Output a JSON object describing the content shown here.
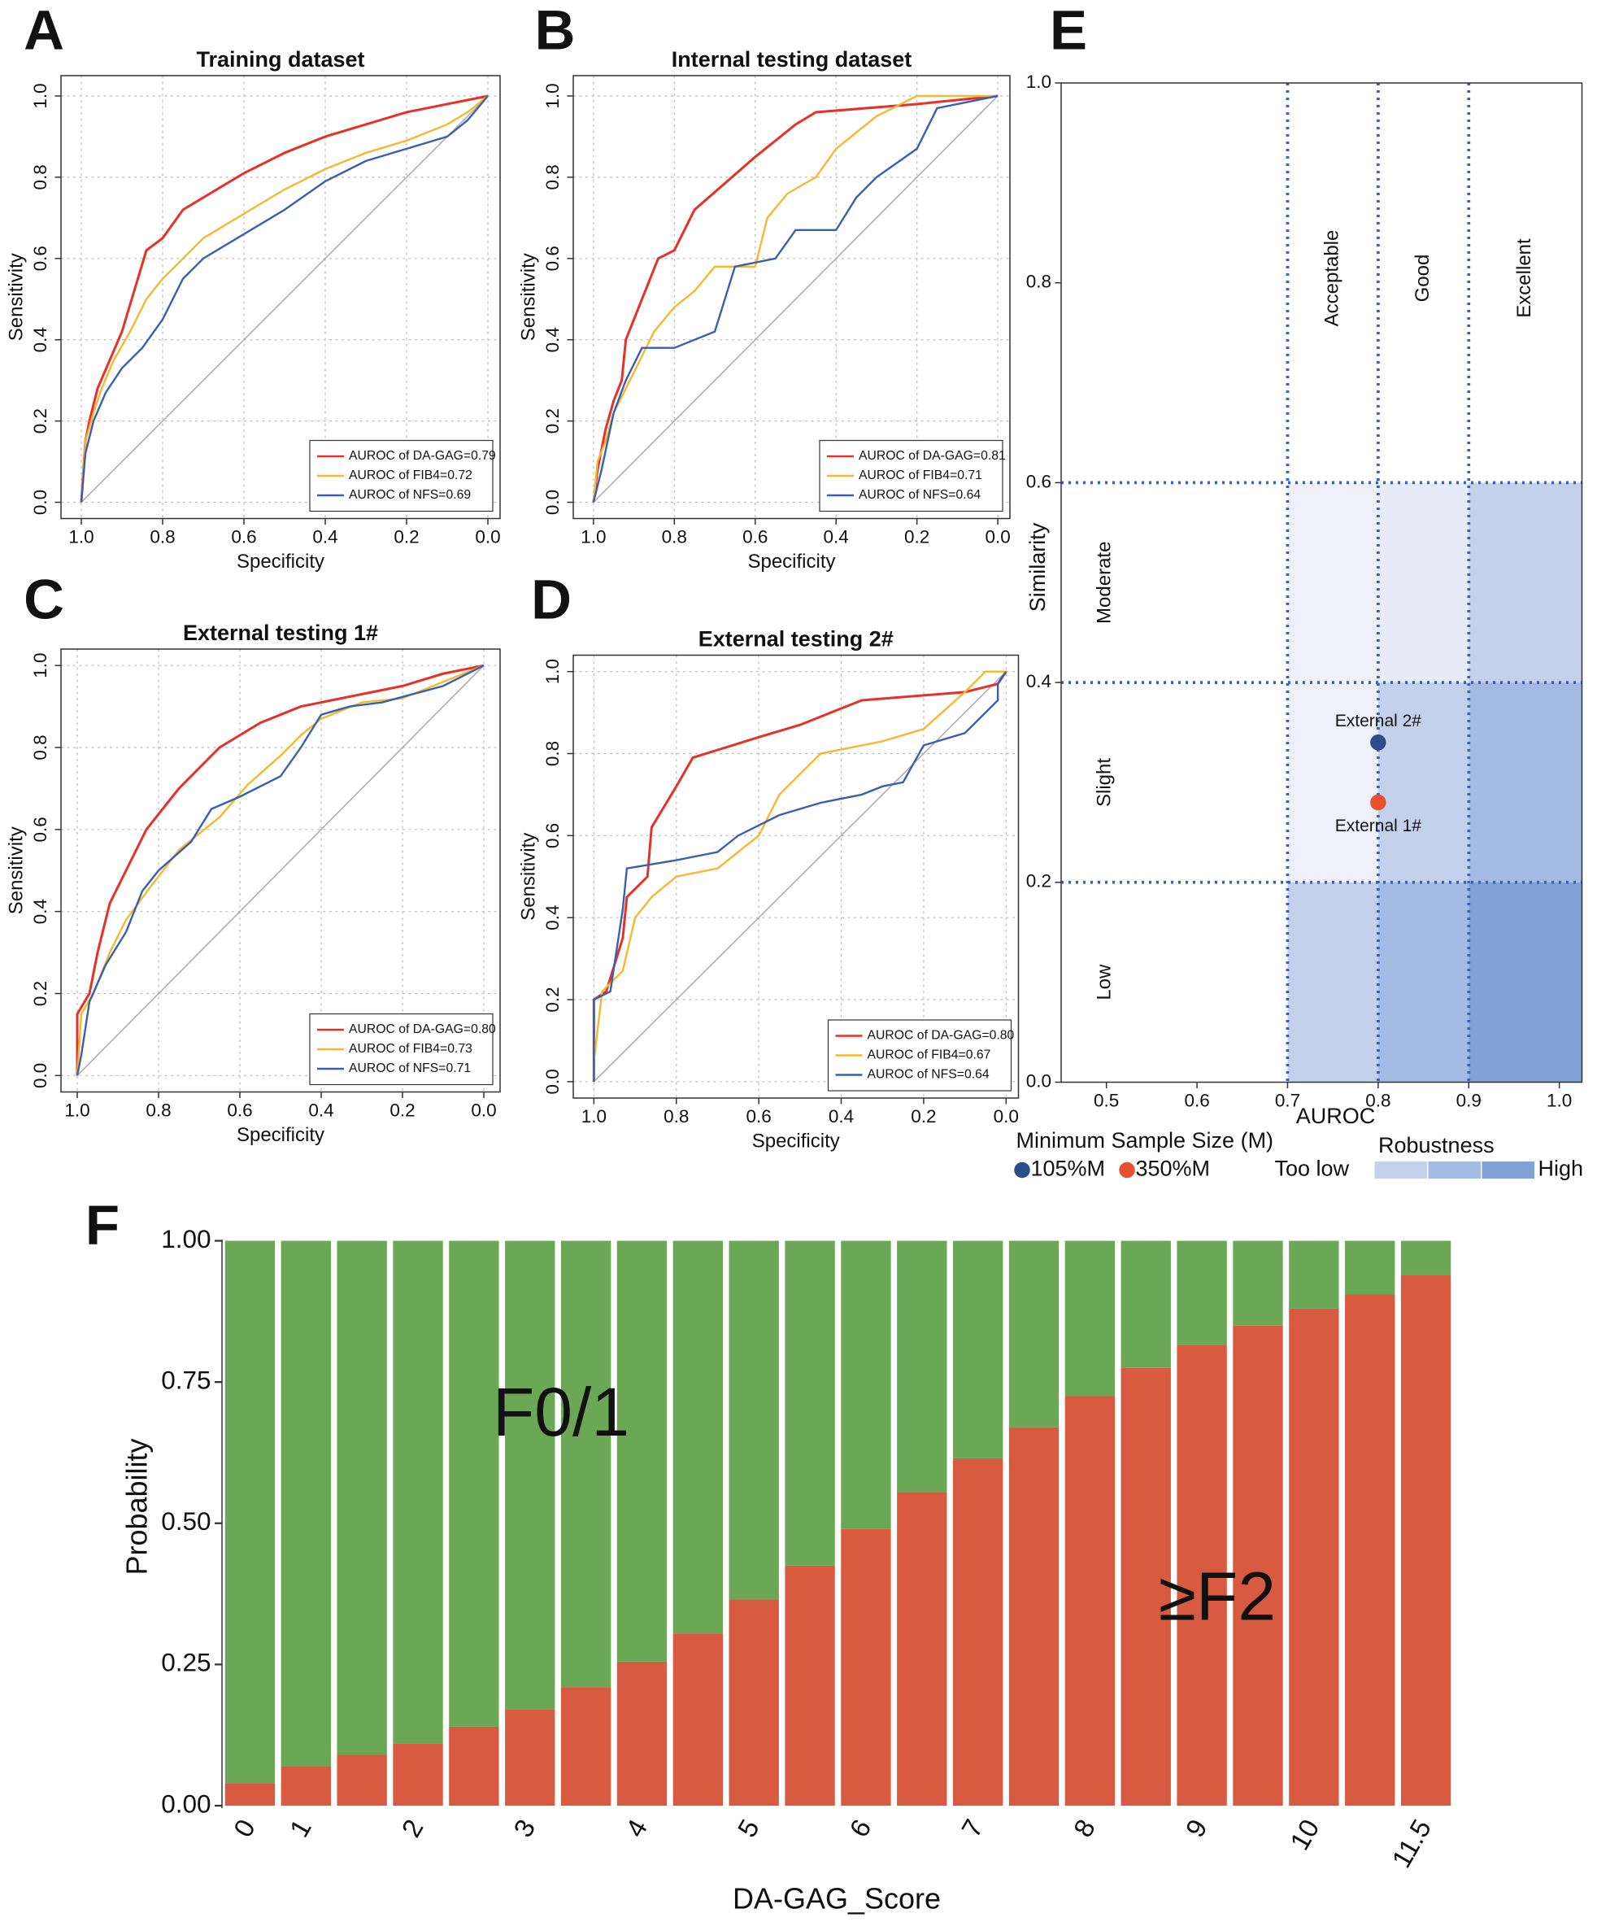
{
  "chart_data": [
    {
      "type": "line",
      "panel": "A",
      "title": "Training dataset",
      "xlabel": "Specificity",
      "ylabel": "Sensitivity",
      "xlim": [
        1.05,
        -0.03
      ],
      "ylim": [
        -0.04,
        1.05
      ],
      "xticks": [
        {
          "value": 1,
          "label": "1.0"
        },
        0.8,
        0.6,
        0.4,
        0.2,
        {
          "value": 0,
          "label": "0.0"
        }
      ],
      "yticks": [
        {
          "value": 0,
          "label": "0.0"
        },
        0.2,
        0.4,
        0.6,
        0.8,
        {
          "value": 1,
          "label": "1.0"
        }
      ],
      "grid": true,
      "legend": "lower right",
      "series": [
        {
          "name": "AUROC of DA-GAG=0.79",
          "color": "#e8302a",
          "x": [
            1,
            0.99,
            0.98,
            0.96,
            0.93,
            0.9,
            0.87,
            0.84,
            0.8,
            0.75,
            0.6,
            0.5,
            0.4,
            0.3,
            0.2,
            0.1,
            0
          ],
          "values": [
            0,
            0.15,
            0.2,
            0.28,
            0.35,
            0.42,
            0.52,
            0.62,
            0.65,
            0.72,
            0.81,
            0.86,
            0.9,
            0.93,
            0.96,
            0.98,
            1
          ]
        },
        {
          "name": "AUROC of FIB4=0.72",
          "color": "#f5b82e",
          "x": [
            1,
            0.99,
            0.97,
            0.95,
            0.92,
            0.88,
            0.84,
            0.8,
            0.75,
            0.7,
            0.6,
            0.5,
            0.4,
            0.3,
            0.2,
            0.1,
            0.05,
            0
          ],
          "values": [
            0,
            0.15,
            0.22,
            0.28,
            0.35,
            0.42,
            0.5,
            0.55,
            0.6,
            0.65,
            0.71,
            0.77,
            0.82,
            0.86,
            0.89,
            0.93,
            0.96,
            1
          ]
        },
        {
          "name": "AUROC of NFS=0.69",
          "color": "#3a5fb0",
          "x": [
            1,
            0.99,
            0.97,
            0.94,
            0.9,
            0.85,
            0.8,
            0.75,
            0.7,
            0.6,
            0.5,
            0.4,
            0.3,
            0.2,
            0.1,
            0.05,
            0
          ],
          "values": [
            0,
            0.12,
            0.2,
            0.27,
            0.33,
            0.38,
            0.45,
            0.55,
            0.6,
            0.66,
            0.72,
            0.79,
            0.84,
            0.87,
            0.9,
            0.94,
            1
          ]
        }
      ]
    },
    {
      "type": "line",
      "panel": "B",
      "title": "Internal testing dataset",
      "xlabel": "Specificity",
      "ylabel": "Sensitivity",
      "xlim": [
        1.05,
        -0.03
      ],
      "ylim": [
        -0.04,
        1.05
      ],
      "xticks": [
        {
          "value": 1,
          "label": "1.0"
        },
        0.8,
        0.6,
        0.4,
        0.2,
        {
          "value": 0,
          "label": "0.0"
        }
      ],
      "yticks": [
        {
          "value": 0,
          "label": "0.0"
        },
        0.2,
        0.4,
        0.6,
        0.8,
        {
          "value": 1,
          "label": "1.0"
        }
      ],
      "grid": true,
      "legend": "lower right",
      "series": [
        {
          "name": "AUROC of DA-GAG=0.81",
          "color": "#e8302a",
          "x": [
            1,
            0.99,
            0.97,
            0.95,
            0.93,
            0.92,
            0.88,
            0.84,
            0.8,
            0.75,
            0.6,
            0.5,
            0.45,
            0.2,
            0
          ],
          "values": [
            0,
            0.08,
            0.18,
            0.25,
            0.3,
            0.4,
            0.5,
            0.6,
            0.62,
            0.72,
            0.85,
            0.93,
            0.96,
            0.98,
            1
          ]
        },
        {
          "name": "AUROC of FIB4=0.71",
          "color": "#f5b82e",
          "x": [
            1,
            0.99,
            0.97,
            0.95,
            0.9,
            0.85,
            0.8,
            0.75,
            0.7,
            0.6,
            0.57,
            0.52,
            0.45,
            0.4,
            0.3,
            0.2,
            0
          ],
          "values": [
            0,
            0.1,
            0.15,
            0.22,
            0.32,
            0.42,
            0.48,
            0.52,
            0.58,
            0.58,
            0.7,
            0.76,
            0.8,
            0.87,
            0.95,
            1,
            1
          ]
        },
        {
          "name": "AUROC of NFS=0.64",
          "color": "#3a5fb0",
          "x": [
            1,
            0.98,
            0.95,
            0.92,
            0.88,
            0.8,
            0.7,
            0.65,
            0.55,
            0.5,
            0.4,
            0.35,
            0.3,
            0.2,
            0.15,
            0
          ],
          "values": [
            0,
            0.08,
            0.22,
            0.3,
            0.38,
            0.38,
            0.42,
            0.58,
            0.6,
            0.67,
            0.67,
            0.75,
            0.8,
            0.87,
            0.97,
            1
          ]
        }
      ]
    },
    {
      "type": "line",
      "panel": "C",
      "title": "External testing 1#",
      "xlabel": "Specificity",
      "ylabel": "Sensitivity",
      "xlim": [
        1.04,
        -0.04
      ],
      "ylim": [
        -0.04,
        1.04
      ],
      "xticks": [
        {
          "value": 1,
          "label": "1.0"
        },
        0.8,
        0.6,
        0.4,
        0.2,
        {
          "value": 0,
          "label": "0.0"
        }
      ],
      "yticks": [
        {
          "value": 0,
          "label": "0.0"
        },
        0.2,
        0.4,
        0.6,
        0.8,
        {
          "value": 1,
          "label": "1.0"
        }
      ],
      "grid": true,
      "legend": "lower right",
      "series": [
        {
          "name": "AUROC of DA-GAG=0.80",
          "color": "#e8302a",
          "x": [
            1,
            1,
            0.97,
            0.95,
            0.92,
            0.88,
            0.83,
            0.75,
            0.65,
            0.55,
            0.45,
            0.35,
            0.2,
            0.1,
            0
          ],
          "values": [
            0,
            0.15,
            0.2,
            0.3,
            0.42,
            0.5,
            0.6,
            0.7,
            0.8,
            0.86,
            0.9,
            0.92,
            0.95,
            0.98,
            1
          ]
        },
        {
          "name": "AUROC of FIB4=0.73",
          "color": "#f5b82e",
          "x": [
            1,
            0.99,
            0.96,
            0.92,
            0.88,
            0.82,
            0.75,
            0.65,
            0.58,
            0.5,
            0.45,
            0.4,
            0.3,
            0.2,
            0.1,
            0
          ],
          "values": [
            0,
            0.15,
            0.2,
            0.3,
            0.38,
            0.46,
            0.55,
            0.63,
            0.71,
            0.78,
            0.83,
            0.87,
            0.91,
            0.92,
            0.96,
            1
          ]
        },
        {
          "name": "AUROC of NFS=0.71",
          "color": "#3a5fb0",
          "x": [
            1,
            0.99,
            0.97,
            0.93,
            0.88,
            0.84,
            0.8,
            0.72,
            0.67,
            0.6,
            0.5,
            0.45,
            0.4,
            0.33,
            0.25,
            0.1,
            0
          ],
          "values": [
            0,
            0.05,
            0.18,
            0.27,
            0.35,
            0.45,
            0.5,
            0.57,
            0.65,
            0.68,
            0.73,
            0.8,
            0.88,
            0.9,
            0.91,
            0.95,
            1
          ]
        }
      ]
    },
    {
      "type": "line",
      "panel": "D",
      "title": "External testing 2#",
      "xlabel": "Specificity",
      "ylabel": "Sensitivity",
      "xlim": [
        1.05,
        -0.03
      ],
      "ylim": [
        -0.04,
        1.04
      ],
      "xticks": [
        {
          "value": 1,
          "label": "1.0"
        },
        0.8,
        0.6,
        0.4,
        0.2,
        {
          "value": 0,
          "label": "0.0"
        }
      ],
      "yticks": [
        {
          "value": 0,
          "label": "0.0"
        },
        0.2,
        0.4,
        0.6,
        0.8,
        {
          "value": 1,
          "label": "1.0"
        }
      ],
      "grid": true,
      "legend": "lower right",
      "series": [
        {
          "name": "AUROC of DA-GAG=0.80",
          "color": "#e8302a",
          "x": [
            1,
            1,
            0.97,
            0.93,
            0.92,
            0.87,
            0.86,
            0.8,
            0.76,
            0.6,
            0.5,
            0.4,
            0.35,
            0.1,
            0.02,
            0
          ],
          "values": [
            0,
            0.2,
            0.22,
            0.35,
            0.45,
            0.5,
            0.62,
            0.72,
            0.79,
            0.84,
            0.87,
            0.91,
            0.93,
            0.95,
            0.97,
            1
          ]
        },
        {
          "name": "AUROC of FIB4=0.67",
          "color": "#f5b82e",
          "x": [
            1,
            1,
            0.98,
            0.93,
            0.9,
            0.86,
            0.8,
            0.7,
            0.6,
            0.55,
            0.5,
            0.45,
            0.3,
            0.2,
            0.1,
            0.05,
            0
          ],
          "values": [
            0,
            0.05,
            0.22,
            0.27,
            0.4,
            0.45,
            0.5,
            0.52,
            0.6,
            0.7,
            0.75,
            0.8,
            0.83,
            0.86,
            0.95,
            1,
            1
          ]
        },
        {
          "name": "AUROC of NFS=0.64",
          "color": "#3a5fb0",
          "x": [
            1,
            1,
            0.96,
            0.93,
            0.92,
            0.8,
            0.7,
            0.65,
            0.55,
            0.45,
            0.35,
            0.3,
            0.25,
            0.2,
            0.1,
            0.02,
            0.02,
            0
          ],
          "values": [
            0,
            0.2,
            0.22,
            0.42,
            0.52,
            0.54,
            0.56,
            0.6,
            0.65,
            0.68,
            0.7,
            0.72,
            0.73,
            0.82,
            0.85,
            0.93,
            0.97,
            1
          ]
        }
      ]
    },
    {
      "type": "scatter",
      "panel": "E",
      "xlabel": "AUROC",
      "ylabel": "Similarity",
      "xlim": [
        0.45,
        1.025
      ],
      "ylim": [
        0,
        1
      ],
      "xticks": [
        0.5,
        0.6,
        0.7,
        0.8,
        0.9,
        {
          "value": 1,
          "label": "1.0"
        }
      ],
      "yticks": [
        {
          "value": 0,
          "label": "0.0"
        },
        0.2,
        0.4,
        0.6,
        0.8,
        {
          "value": 1,
          "label": "1.0"
        }
      ],
      "xbands": [
        0.7,
        0.8,
        0.9
      ],
      "xband_labels": [
        "Acceptable",
        "Good",
        "Excellent"
      ],
      "ybands": [
        0.2,
        0.4,
        0.6
      ],
      "yband_labels": [
        "Low",
        "Slight",
        "Moderate"
      ],
      "band_line_color": "#3a5fc0",
      "regions": [
        {
          "x": [
            0.7,
            0.8
          ],
          "y": [
            0.4,
            0.6
          ],
          "color": "#eef1f9"
        },
        {
          "x": [
            0.8,
            0.9
          ],
          "y": [
            0.4,
            0.6
          ],
          "color": "#e6ecf7"
        },
        {
          "x": [
            0.9,
            1.025
          ],
          "y": [
            0.4,
            0.6
          ],
          "color": "#c3d1eb"
        },
        {
          "x": [
            0.7,
            0.8
          ],
          "y": [
            0.2,
            0.4
          ],
          "color": "#eef1f9"
        },
        {
          "x": [
            0.8,
            0.9
          ],
          "y": [
            0.2,
            0.4
          ],
          "color": "#c3d1eb"
        },
        {
          "x": [
            0.9,
            1.025
          ],
          "y": [
            0.2,
            0.4
          ],
          "color": "#a4bce3"
        },
        {
          "x": [
            0.7,
            0.8
          ],
          "y": [
            0,
            0.2
          ],
          "color": "#c3d1eb"
        },
        {
          "x": [
            0.8,
            0.9
          ],
          "y": [
            0,
            0.2
          ],
          "color": "#a4bce3"
        },
        {
          "x": [
            0.9,
            1.025
          ],
          "y": [
            0,
            0.2
          ],
          "color": "#80a2d6"
        }
      ],
      "series": [
        {
          "name": "External 2#",
          "sample_size": "105%M",
          "color": "#2b4d8c",
          "x": [
            0.8
          ],
          "values": [
            0.34
          ]
        },
        {
          "name": "External 1#",
          "sample_size": "350%M",
          "color": "#e8502f",
          "x": [
            0.8
          ],
          "values": [
            0.28
          ]
        }
      ],
      "size_legend_title": "Minimum Sample Size (M)",
      "robustness_legend": {
        "title": "Robustness",
        "low_label": "Too low",
        "high_label": "High",
        "colors": [
          "#c3d1eb",
          "#a4bce3",
          "#80a2d6"
        ]
      }
    },
    {
      "type": "bar",
      "panel": "F",
      "stacked": true,
      "xlabel": "DA-GAG_Score",
      "ylabel": "Probability",
      "ylim": [
        0,
        1
      ],
      "yticks": [
        {
          "value": 0,
          "label": "0.00"
        },
        0.25,
        {
          "value": 0.5,
          "label": "0.50"
        },
        0.75,
        {
          "value": 1,
          "label": "1.00"
        }
      ],
      "categories": [
        "0",
        "1",
        null,
        "2",
        null,
        "3",
        null,
        "4",
        null,
        "5",
        null,
        "6",
        null,
        "7",
        null,
        "8",
        null,
        "9",
        null,
        "10",
        null,
        "11.5"
      ],
      "series": [
        {
          "name": "≥F2",
          "color": "#d85b41",
          "values": [
            0.04,
            0.07,
            0.09,
            0.11,
            0.14,
            0.17,
            0.21,
            0.255,
            0.305,
            0.365,
            0.425,
            0.49,
            0.555,
            0.615,
            0.67,
            0.725,
            0.775,
            0.815,
            0.85,
            0.88,
            0.905,
            0.94
          ]
        },
        {
          "name": "F0/1",
          "color": "#6aa855",
          "values": [
            0.96,
            0.93,
            0.91,
            0.89,
            0.86,
            0.83,
            0.79,
            0.745,
            0.695,
            0.635,
            0.575,
            0.51,
            0.445,
            0.385,
            0.33,
            0.275,
            0.225,
            0.185,
            0.15,
            0.12,
            0.095,
            0.06
          ]
        }
      ]
    }
  ]
}
